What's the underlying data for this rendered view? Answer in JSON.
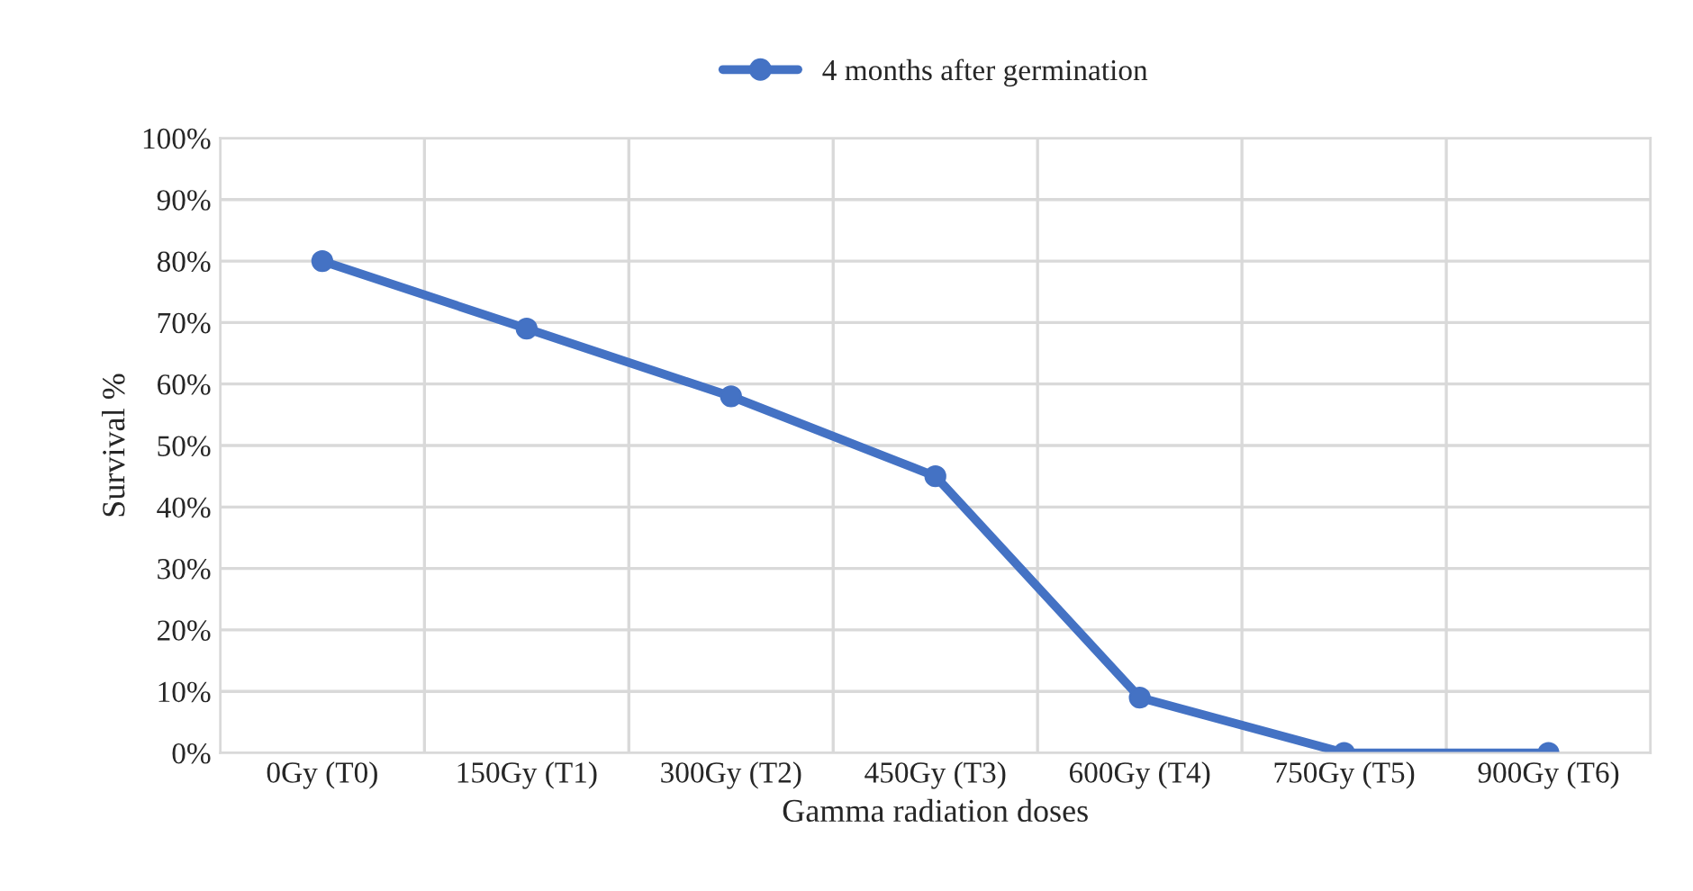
{
  "chart_data": {
    "type": "line",
    "xlabel": "Gamma radiation doses",
    "ylabel": "Survival %",
    "categories": [
      "0Gy (T0)",
      "150Gy (T1)",
      "300Gy (T2)",
      "450Gy (T3)",
      "600Gy (T4)",
      "750Gy (T5)",
      "900Gy (T6)"
    ],
    "series": [
      {
        "name": "4 months after germination",
        "color": "#4472c4",
        "values": [
          80,
          69,
          58,
          45,
          9,
          0,
          0
        ]
      }
    ],
    "ylim": [
      0,
      100
    ],
    "yticks": [
      {
        "value": 0,
        "label": "0%"
      },
      {
        "value": 10,
        "label": "10%"
      },
      {
        "value": 20,
        "label": "20%"
      },
      {
        "value": 30,
        "label": "30%"
      },
      {
        "value": 40,
        "label": "40%"
      },
      {
        "value": 50,
        "label": "50%"
      },
      {
        "value": 60,
        "label": "60%"
      },
      {
        "value": 70,
        "label": "70%"
      },
      {
        "value": 80,
        "label": "80%"
      },
      {
        "value": 90,
        "label": "90%"
      },
      {
        "value": 100,
        "label": "100%"
      }
    ],
    "grid": true,
    "legend": "top",
    "marker": "circle",
    "line_style": "solid"
  }
}
